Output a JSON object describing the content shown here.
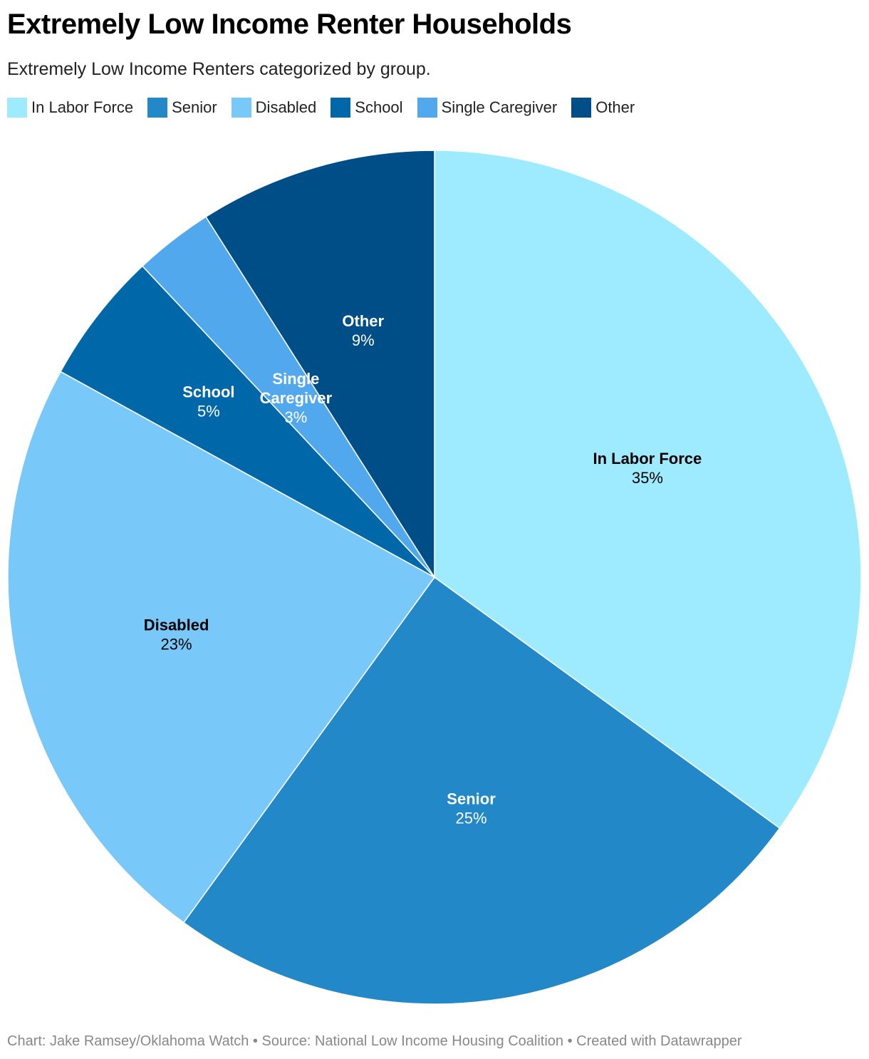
{
  "title": "Extremely Low Income Renter Households",
  "subtitle": "Extremely Low Income Renters categorized by group.",
  "footer": "Chart: Jake Ramsey/Oklahoma Watch • Source: National Low Income Housing Coalition • Created with Datawrapper",
  "chart_data": {
    "type": "pie",
    "title": "Extremely Low Income Renter Households",
    "subtitle": "Extremely Low Income Renters categorized by group.",
    "legend_position": "top-left",
    "slices": [
      {
        "name": "In Labor Force",
        "value": 35,
        "label": "35%",
        "color": "#9eebff",
        "label_lines": [
          "In Labor Force"
        ],
        "text_color": "#000000"
      },
      {
        "name": "Senior",
        "value": 25,
        "label": "25%",
        "color": "#2288c8",
        "label_lines": [
          "Senior"
        ],
        "text_color": "#ffffff"
      },
      {
        "name": "Disabled",
        "value": 23,
        "label": "23%",
        "color": "#78c8fa",
        "label_lines": [
          "Disabled"
        ],
        "text_color": "#000000"
      },
      {
        "name": "School",
        "value": 5,
        "label": "5%",
        "color": "#0068a8",
        "label_lines": [
          "School"
        ],
        "text_color": "#ffffff"
      },
      {
        "name": "Single Caregiver",
        "value": 3,
        "label": "3%",
        "color": "#52a8ec",
        "label_lines": [
          "Single",
          "Caregiver"
        ],
        "text_color": "#ffffff"
      },
      {
        "name": "Other",
        "value": 9,
        "label": "9%",
        "color": "#004e88",
        "label_lines": [
          "Other"
        ],
        "text_color": "#ffffff"
      }
    ]
  }
}
